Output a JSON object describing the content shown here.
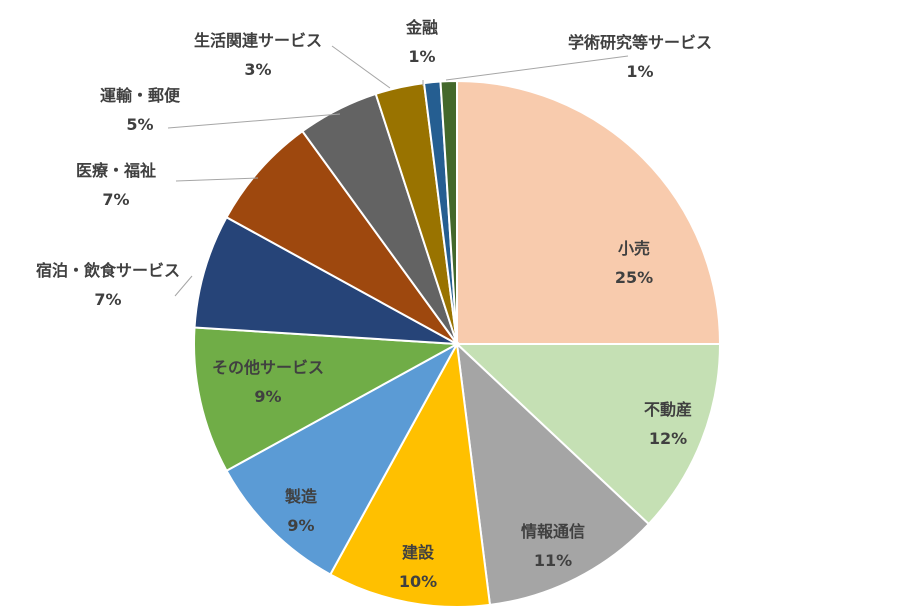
{
  "chart_data": {
    "type": "pie",
    "title": "",
    "start_angle_deg": 0,
    "direction": "clockwise",
    "slices": [
      {
        "label": "小売",
        "value": 25,
        "value_label": "25%",
        "color": "#F8CBAD",
        "label_placement": "inside"
      },
      {
        "label": "不動産",
        "value": 12,
        "value_label": "12%",
        "color": "#C5E0B4",
        "label_placement": "inside"
      },
      {
        "label": "情報通信",
        "value": 11,
        "value_label": "11%",
        "color": "#A5A5A5",
        "label_placement": "inside"
      },
      {
        "label": "建設",
        "value": 10,
        "value_label": "10%",
        "color": "#FFC000",
        "label_placement": "inside"
      },
      {
        "label": "製造",
        "value": 9,
        "value_label": "9%",
        "color": "#5B9BD5",
        "label_placement": "inside"
      },
      {
        "label": "その他サービス",
        "value": 9,
        "value_label": "9%",
        "color": "#70AD47",
        "label_placement": "inside"
      },
      {
        "label": "宿泊・飲食サービス",
        "value": 7,
        "value_label": "7%",
        "color": "#264478",
        "label_placement": "outside"
      },
      {
        "label": "医療・福祉",
        "value": 7,
        "value_label": "7%",
        "color": "#9E480E",
        "label_placement": "outside"
      },
      {
        "label": "運輸・郵便",
        "value": 5,
        "value_label": "5%",
        "color": "#636363",
        "label_placement": "outside"
      },
      {
        "label": "生活関連サービス",
        "value": 3,
        "value_label": "3%",
        "color": "#997300",
        "label_placement": "outside"
      },
      {
        "label": "金融",
        "value": 1,
        "value_label": "1%",
        "color": "#255E91",
        "label_placement": "outside"
      },
      {
        "label": "学術研究等サービス",
        "value": 1,
        "value_label": "1%",
        "color": "#43682B",
        "label_placement": "outside"
      }
    ]
  }
}
